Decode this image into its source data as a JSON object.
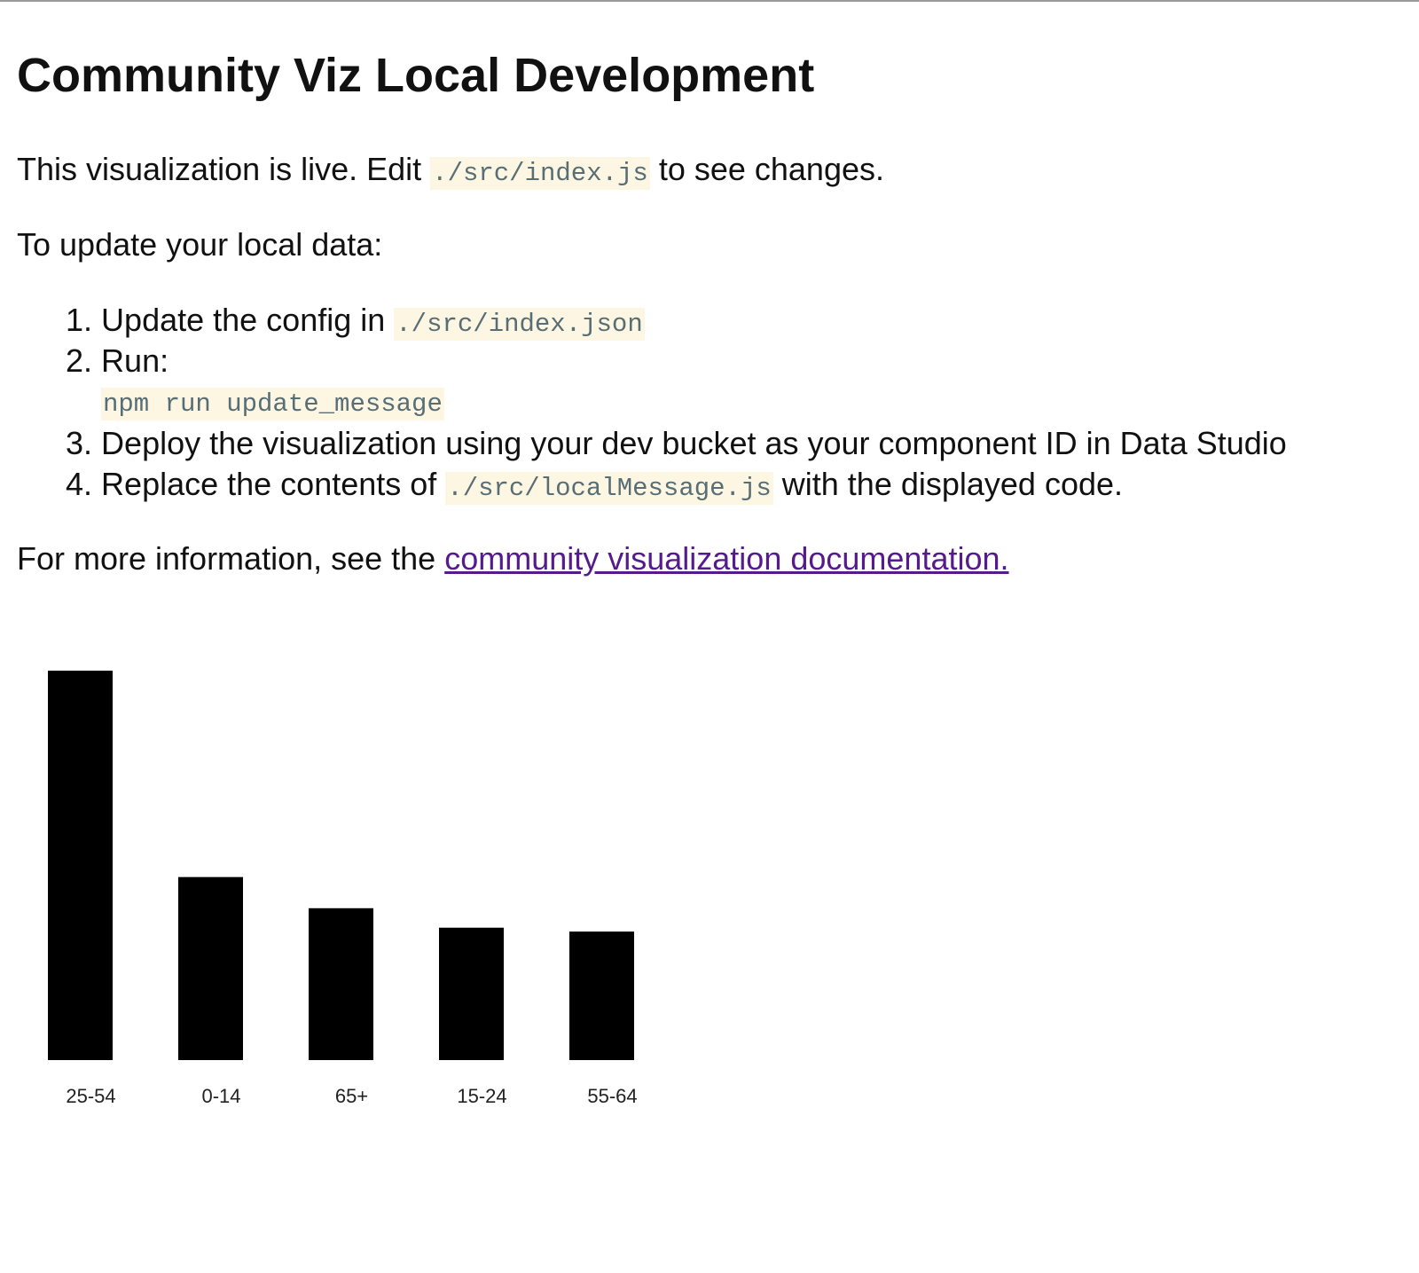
{
  "title": "Community Viz Local Development",
  "intro": {
    "text_before": "This visualization is live. Edit ",
    "code": "./src/index.js",
    "text_after": " to see changes."
  },
  "update_heading": "To update your local data:",
  "steps": [
    {
      "num": "1.",
      "text": "Update the config in ",
      "code": "./src/index.json"
    },
    {
      "num": "2.",
      "text": "Run:",
      "code": "npm run update_message"
    },
    {
      "num": "3.",
      "text": "Deploy the visualization using your dev bucket as your component ID in Data Studio"
    },
    {
      "num": "4.",
      "text": "Replace the contents of ",
      "code": "./src/localMessage.js",
      "text_after": " with the displayed code."
    }
  ],
  "more_info": {
    "text": "For more information, see the ",
    "link": "community visualization documentation."
  },
  "colors": {
    "code_bg": "#fdf6e3",
    "code_fg": "#586e75",
    "link": "#551a8b",
    "bar": "#000000"
  },
  "chart_data": {
    "type": "bar",
    "categories": [
      "25-54",
      "0-14",
      "65+",
      "15-24",
      "55-64"
    ],
    "values": [
      100,
      47,
      39,
      34,
      33
    ],
    "title": "",
    "xlabel": "",
    "ylabel": "",
    "ylim": [
      0,
      100
    ],
    "grid": false
  }
}
